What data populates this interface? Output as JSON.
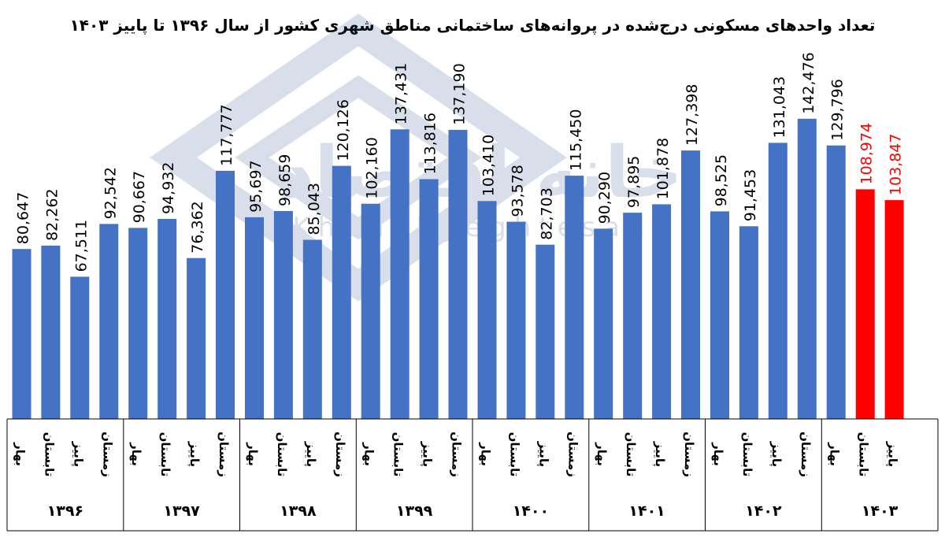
{
  "chart_data": {
    "type": "bar",
    "title": "تعداد واحدهای مسکونی درج‌شده در پروانه‌های ساختمانی مناطق شهری کشور از سال ۱۳۹۶ تا پاییز ۱۴۰۳",
    "season_labels": [
      "بهار",
      "تابستان",
      "پاییز",
      "زمستان"
    ],
    "years": [
      {
        "year": "۱۳۹۶",
        "seasons": 4
      },
      {
        "year": "۱۳۹۷",
        "seasons": 4
      },
      {
        "year": "۱۳۹۸",
        "seasons": 4
      },
      {
        "year": "۱۳۹۹",
        "seasons": 4
      },
      {
        "year": "۱۴۰۰",
        "seasons": 4
      },
      {
        "year": "۱۴۰۱",
        "seasons": 4
      },
      {
        "year": "۱۴۰۲",
        "seasons": 4
      },
      {
        "year": "۱۴۰۳",
        "seasons": 3
      }
    ],
    "values": [
      80647,
      82262,
      67511,
      92542,
      90667,
      94932,
      76362,
      117777,
      95697,
      98659,
      85043,
      120126,
      102160,
      137431,
      113816,
      137190,
      103410,
      93578,
      82703,
      115450,
      90290,
      97895,
      101878,
      127398,
      98525,
      91453,
      131043,
      142476,
      129796,
      108974,
      103847
    ],
    "value_labels": [
      "80,647",
      "82,262",
      "67,511",
      "92,542",
      "90,667",
      "94,932",
      "76,362",
      "117,777",
      "95,697",
      "98,659",
      "85,043",
      "120,126",
      "102,160",
      "137,431",
      "113,816",
      "137,190",
      "103,410",
      "93,578",
      "82,703",
      "115,450",
      "90,290",
      "97,895",
      "101,878",
      "127,398",
      "98,525",
      "91,453",
      "131,043",
      "142,476",
      "129,796",
      "108,974",
      "103,847"
    ],
    "highlight_indices": [
      29,
      30
    ],
    "ylim": [
      0,
      185000
    ],
    "colors": {
      "bar": "#4472C4",
      "highlight": "#FF0000",
      "label": "#000000",
      "highlight_label": "#FF0000"
    }
  },
  "watermark": {
    "brand_fa": "خانه اقتصاد",
    "brand_en": "Khanehyeghtesad"
  }
}
